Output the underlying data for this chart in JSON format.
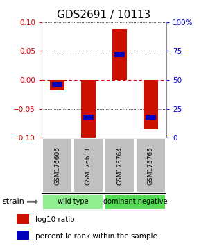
{
  "title": "GDS2691 / 10113",
  "samples": [
    "GSM176606",
    "GSM176611",
    "GSM175764",
    "GSM175765"
  ],
  "log10_ratio": [
    -0.018,
    -0.1,
    0.088,
    -0.085
  ],
  "percentile_rank": [
    0.46,
    0.18,
    0.72,
    0.18
  ],
  "ylim": [
    -0.1,
    0.1
  ],
  "yticks_left": [
    -0.1,
    -0.05,
    0,
    0.05,
    0.1
  ],
  "yticks_right_vals": [
    0,
    25,
    50,
    75,
    100
  ],
  "groups": [
    {
      "label": "wild type",
      "indices": [
        0,
        1
      ],
      "color": "#90EE90"
    },
    {
      "label": "dominant negative",
      "indices": [
        2,
        3
      ],
      "color": "#55DD55"
    }
  ],
  "bar_color": "#CC1100",
  "rank_color": "#0000BB",
  "zero_line_color": "#CC0000",
  "grid_color": "#000000",
  "title_fontsize": 11,
  "axis_color_left": "#CC0000",
  "axis_color_right": "#0000CC",
  "sample_box_color": "#C0C0C0",
  "legend_items": [
    {
      "label": "log10 ratio",
      "color": "#CC1100"
    },
    {
      "label": "percentile rank within the sample",
      "color": "#0000BB"
    }
  ],
  "group_label": "strain"
}
